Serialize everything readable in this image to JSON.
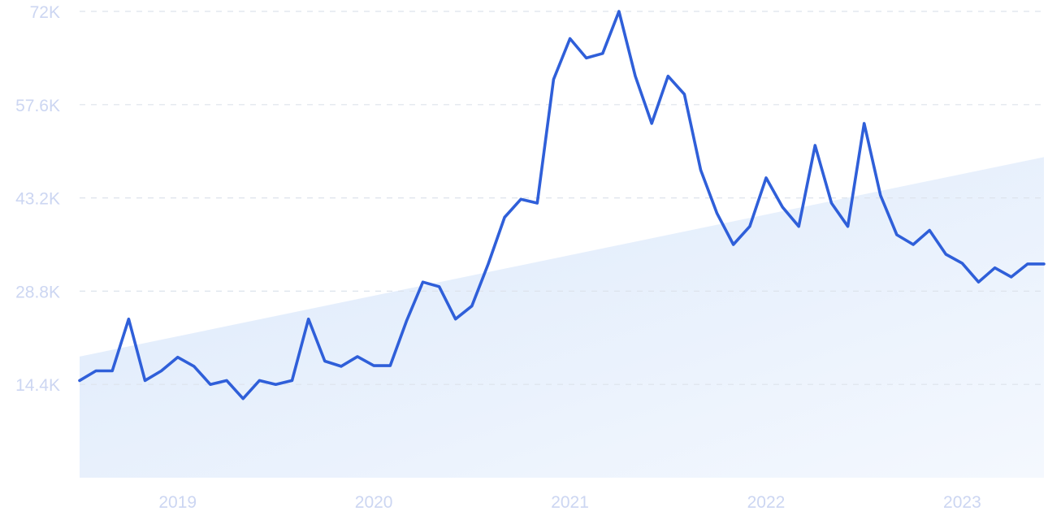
{
  "chart_data": {
    "type": "line",
    "title": "",
    "xlabel": "",
    "ylabel": "",
    "grid": true,
    "legend": "none",
    "ylim": [
      0,
      72000
    ],
    "xlim": [
      "2018-07",
      "2023-06"
    ],
    "x_tick_labels": [
      "2019",
      "2020",
      "2021",
      "2022",
      "2023"
    ],
    "x_ticks": [
      "2019-01",
      "2020-01",
      "2021-01",
      "2022-01",
      "2023-01"
    ],
    "y_ticks": [
      14400,
      28800,
      43200,
      57600,
      72000
    ],
    "y_tick_labels": [
      "14.4K",
      "28.8K",
      "43.2K",
      "57.6K",
      "72K"
    ],
    "series": [
      {
        "values_x": [
          "2018-07",
          "2018-08",
          "2018-09",
          "2018-10",
          "2018-11",
          "2018-12",
          "2019-01",
          "2019-02",
          "2019-03",
          "2019-04",
          "2019-05",
          "2019-06",
          "2019-07",
          "2019-08",
          "2019-09",
          "2019-10",
          "2019-11",
          "2019-12",
          "2020-01",
          "2020-02",
          "2020-03",
          "2020-04",
          "2020-05",
          "2020-06",
          "2020-07",
          "2020-08",
          "2020-09",
          "2020-10",
          "2020-11",
          "2020-12",
          "2021-01",
          "2021-02",
          "2021-03",
          "2021-04",
          "2021-05",
          "2021-06",
          "2021-07",
          "2021-08",
          "2021-09",
          "2021-10",
          "2021-11",
          "2021-12",
          "2022-01",
          "2022-02",
          "2022-03",
          "2022-04",
          "2022-05",
          "2022-06",
          "2022-07",
          "2022-08",
          "2022-09",
          "2022-10",
          "2022-11",
          "2022-12",
          "2023-01",
          "2023-02",
          "2023-03",
          "2023-04",
          "2023-05",
          "2023-06"
        ],
        "values": [
          15000,
          16500,
          16500,
          24500,
          15000,
          16500,
          18600,
          17200,
          14400,
          15000,
          12200,
          15000,
          14400,
          15000,
          24500,
          18000,
          17200,
          18700,
          17300,
          17300,
          24200,
          30200,
          29500,
          24500,
          26500,
          33000,
          40200,
          43000,
          42400,
          61500,
          67800,
          64800,
          65500,
          72000,
          62000,
          54700,
          62000,
          59200,
          47500,
          40800,
          36000,
          38800,
          46300,
          41800,
          38800,
          51300,
          42400,
          38800,
          54700,
          43600,
          37500,
          36000,
          38200,
          34500,
          33100,
          30200,
          32400,
          31000,
          33000,
          33000
        ]
      }
    ],
    "trend": {
      "start": 18700,
      "end": 49500
    },
    "colors": {
      "line": "#2f5fd9",
      "trend_fill_start": "#dce9fb",
      "trend_fill_end": "#f4f8fe",
      "grid": "#dde3ec",
      "tick_label": "#ccd6f2"
    }
  }
}
